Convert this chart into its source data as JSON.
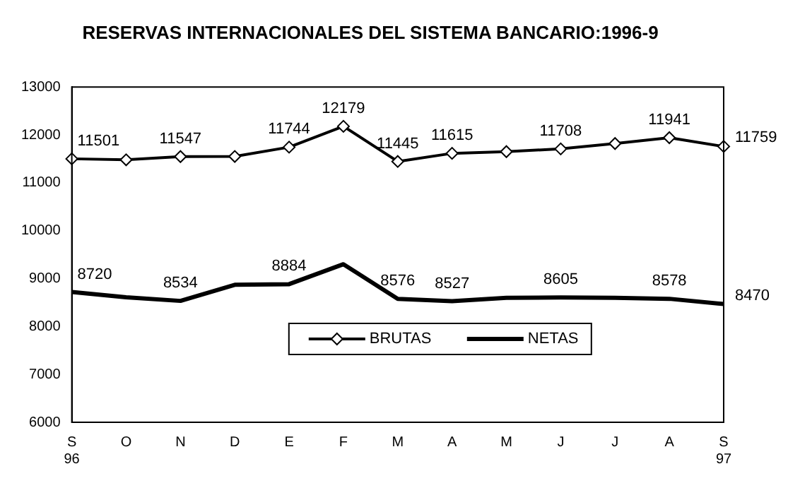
{
  "chart_data": {
    "type": "line",
    "title": "RESERVAS INTERNACIONALES DEL SISTEMA BANCARIO:1996-9",
    "categories": [
      "S\n96",
      "O",
      "N",
      "D",
      "E",
      "F",
      "M",
      "A",
      "M",
      "J",
      "J",
      "A",
      "S\n97"
    ],
    "series": [
      {
        "name": "BRUTAS",
        "color": "#000000",
        "marker": "diamond",
        "values": [
          11501,
          11480,
          11547,
          11550,
          11744,
          12179,
          11445,
          11615,
          11650,
          11708,
          11820,
          11941,
          11759
        ],
        "value_labels": [
          "11501",
          null,
          "11547",
          null,
          "11744",
          "12179",
          "11445",
          "11615",
          null,
          "11708",
          null,
          "11941",
          "11759"
        ]
      },
      {
        "name": "NETAS",
        "color": "#000000",
        "marker": "none",
        "values": [
          8720,
          8610,
          8534,
          8870,
          8884,
          9300,
          8576,
          8527,
          8600,
          8605,
          8600,
          8578,
          8470
        ],
        "value_labels": [
          "8720",
          null,
          "8534",
          null,
          "8884",
          null,
          "8576",
          "8527",
          null,
          "8605",
          null,
          "8578",
          "8470"
        ]
      }
    ],
    "ylim": [
      6000,
      13000
    ],
    "yticks": [
      6000,
      7000,
      8000,
      9000,
      10000,
      11000,
      12000,
      13000
    ],
    "grid": false,
    "legend": "bottom",
    "line_style": "solid"
  }
}
